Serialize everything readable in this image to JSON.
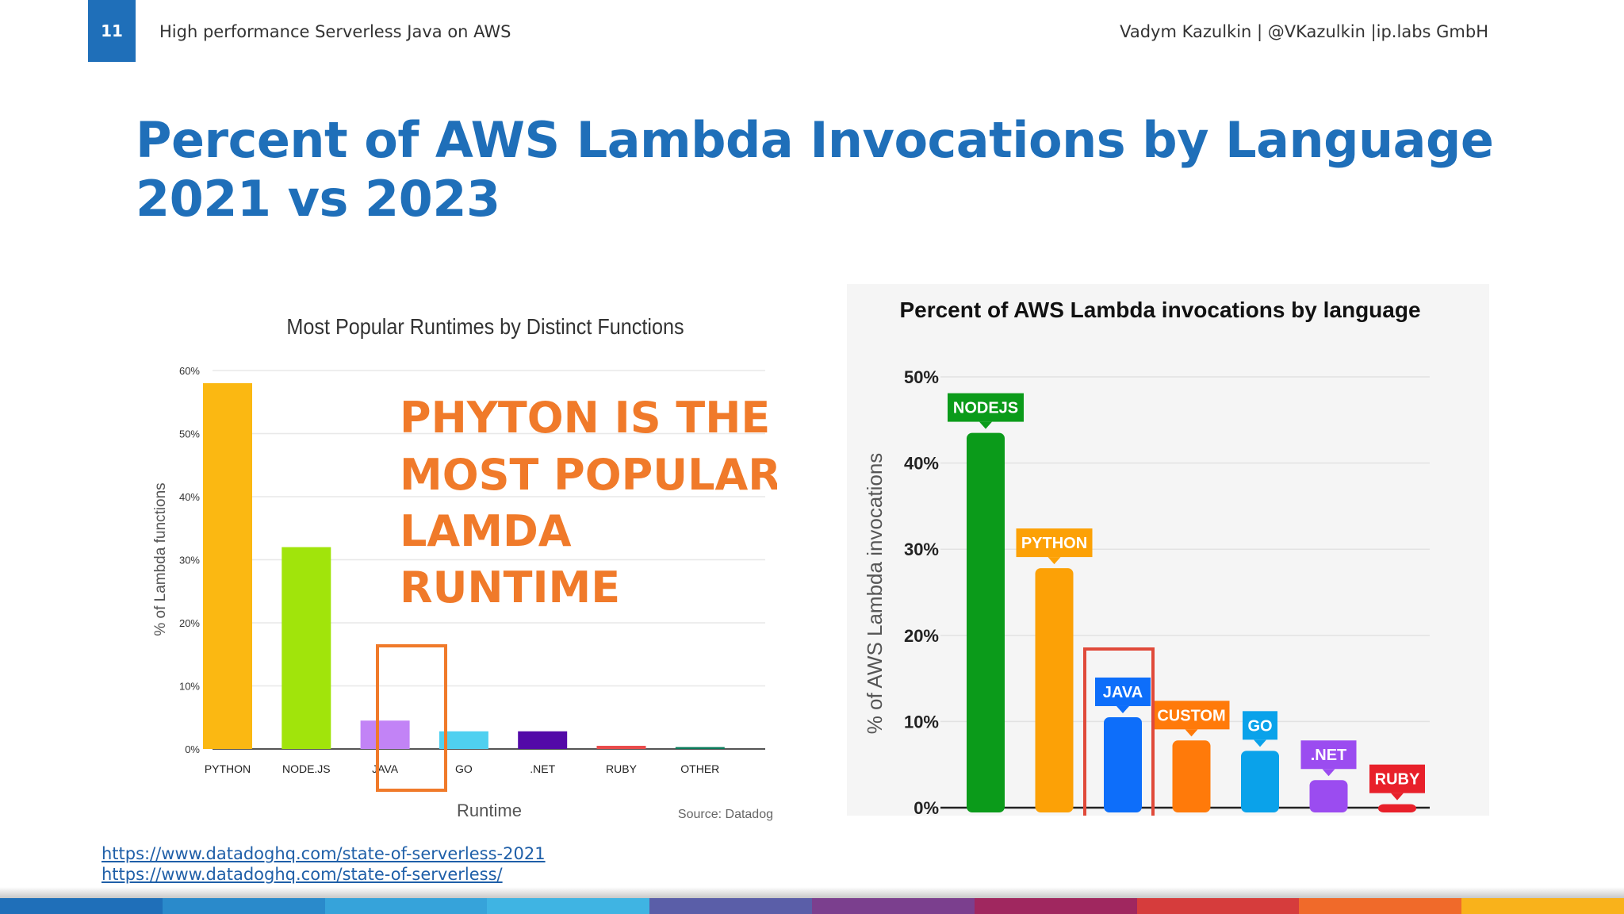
{
  "header": {
    "slide_number": "11",
    "left_text": "High performance Serverless Java on AWS",
    "right_text": "Vadym Kazulkin | @VKazulkin |ip.labs GmbH"
  },
  "title": {
    "line1": "Percent of AWS Lambda Invocations by Language",
    "line2": "2021 vs 2023"
  },
  "annotation": {
    "lines": [
      "PHYTON IS THE",
      "MOST POPULAR",
      "LAMDA",
      "RUNTIME"
    ]
  },
  "links": [
    "https://www.datadoghq.com/state-of-serverless-2021",
    "https://www.datadoghq.com/state-of-serverless/"
  ],
  "footer_colors": [
    "#1f6fb9",
    "#2a8acb",
    "#36a3da",
    "#3fb4e3",
    "#5a5ea8",
    "#7b3f8e",
    "#a0275f",
    "#d63c3c",
    "#f06a2a",
    "#f9b21b"
  ],
  "chart_data": [
    {
      "type": "bar",
      "title": "Most Popular Runtimes by Distinct Functions",
      "xlabel": "Runtime",
      "ylabel": "% of Lambda functions",
      "ylim": [
        0,
        60
      ],
      "yticks": [
        "0%",
        "10%",
        "20%",
        "30%",
        "40%",
        "50%",
        "60%"
      ],
      "grid": true,
      "source": "Source: Datadog",
      "categories": [
        "PYTHON",
        "NODE.JS",
        "JAVA",
        "GO",
        ".NET",
        "RUBY",
        "OTHER"
      ],
      "values": [
        58,
        32,
        4.5,
        2.8,
        2.8,
        0.5,
        0.3
      ],
      "colors": [
        "#fbb812",
        "#a1e40b",
        "#c283f6",
        "#4fd0f0",
        "#5309a8",
        "#e94a4a",
        "#0a7a5a"
      ],
      "highlight": "JAVA"
    },
    {
      "type": "bar",
      "title": "Percent of AWS Lambda invocations by language",
      "ylabel": "% of AWS Lambda invocations",
      "ylim": [
        0,
        50
      ],
      "yticks": [
        "0%",
        "10%",
        "20%",
        "30%",
        "40%",
        "50%"
      ],
      "grid": true,
      "categories": [
        "NODEJS",
        "PYTHON",
        "JAVA",
        "CUSTOM",
        "GO",
        ".NET",
        "RUBY"
      ],
      "values": [
        43.5,
        27.8,
        10.5,
        7.8,
        6.6,
        3.2,
        0.4
      ],
      "colors": [
        "#0b9b1a",
        "#fca106",
        "#0d6efa",
        "#ff7a0a",
        "#0aa2ea",
        "#9b4cf0",
        "#e8202a"
      ],
      "highlight": "JAVA"
    }
  ]
}
